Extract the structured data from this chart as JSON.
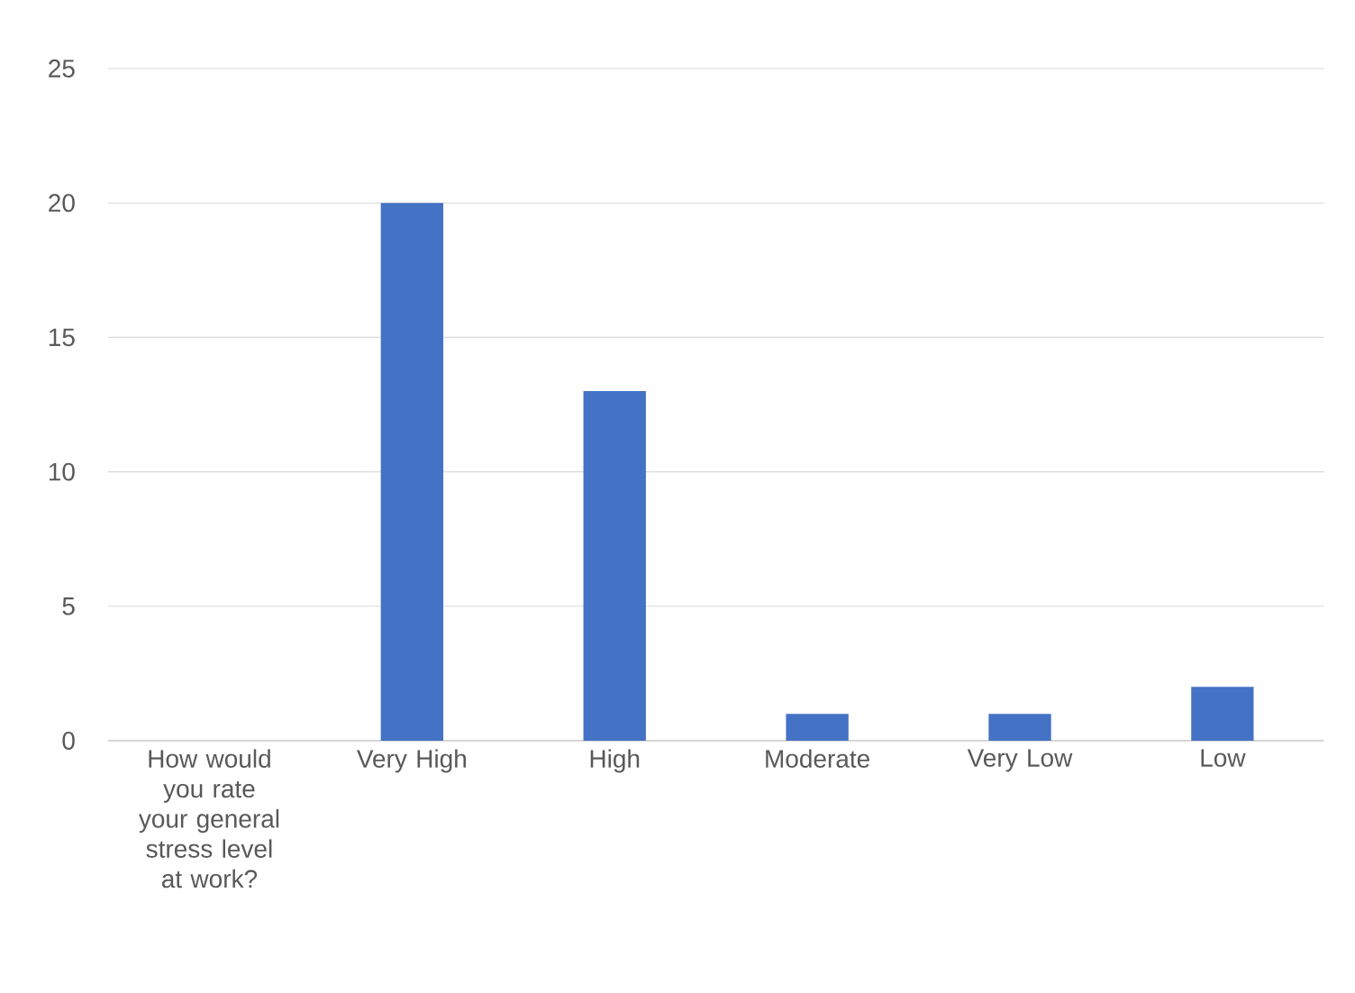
{
  "chart_data": {
    "type": "bar",
    "categories": [
      "How would you rate your general stress level at work?",
      "Very High",
      "High",
      "Moderate",
      "Very Low",
      "Low"
    ],
    "values": [
      null,
      20,
      13,
      1,
      1,
      2
    ],
    "color": "#4472c4",
    "ylim": [
      0,
      25
    ],
    "yticks": [
      0,
      5,
      10,
      15,
      20,
      25
    ],
    "grid": "y"
  }
}
